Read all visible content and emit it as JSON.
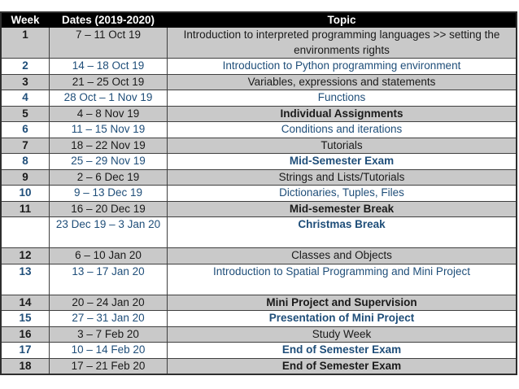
{
  "table": {
    "title": "course-schedule",
    "columns": [
      {
        "label": "Week"
      },
      {
        "label": "Dates (2019-2020)"
      },
      {
        "label": "Topic"
      }
    ],
    "rows": [
      {
        "week": "1",
        "dates": "7 – 11 Oct 19",
        "topic": "Introduction to interpreted programming languages >> setting the environments rights",
        "shade": "gray",
        "topic_bold": false,
        "lines": 2
      },
      {
        "week": "2",
        "dates": "14 – 18 Oct 19",
        "topic": "Introduction to Python programming environment",
        "shade": "white",
        "topic_bold": false,
        "lines": 1
      },
      {
        "week": "3",
        "dates": "21 – 25 Oct 19",
        "topic": "Variables, expressions and statements",
        "shade": "gray",
        "topic_bold": false,
        "lines": 1
      },
      {
        "week": "4",
        "dates": "28 Oct – 1 Nov 19",
        "topic": "Functions",
        "shade": "white",
        "topic_bold": false,
        "lines": 1
      },
      {
        "week": "5",
        "dates": "4 – 8 Nov 19",
        "topic": "Individual Assignments",
        "shade": "gray",
        "topic_bold": true,
        "lines": 1
      },
      {
        "week": "6",
        "dates": "11 – 15 Nov 19",
        "topic": "Conditions and iterations",
        "shade": "white",
        "topic_bold": false,
        "lines": 1
      },
      {
        "week": "7",
        "dates": "18 – 22 Nov 19",
        "topic": "Tutorials",
        "shade": "gray",
        "topic_bold": false,
        "lines": 1
      },
      {
        "week": "8",
        "dates": "25 – 29 Nov 19",
        "topic": "Mid-Semester Exam",
        "shade": "white",
        "topic_bold": true,
        "lines": 1
      },
      {
        "week": "9",
        "dates": "2 – 6 Dec 19",
        "topic": "Strings and Lists/Tutorials",
        "shade": "gray",
        "topic_bold": false,
        "lines": 1
      },
      {
        "week": "10",
        "dates": "9 – 13 Dec 19",
        "topic": "Dictionaries, Tuples, Files",
        "shade": "white",
        "topic_bold": false,
        "lines": 1
      },
      {
        "week": "11",
        "dates": "16 – 20 Dec 19",
        "topic": "Mid-semester Break",
        "shade": "gray",
        "topic_bold": true,
        "lines": 1
      },
      {
        "week": "",
        "dates": "23 Dec 19 – 3 Jan 20",
        "topic": "Christmas Break",
        "shade": "white",
        "topic_bold": true,
        "lines": 2
      },
      {
        "week": "12",
        "dates": "6 – 10 Jan 20",
        "topic": "Classes and Objects",
        "shade": "gray",
        "topic_bold": false,
        "lines": 1
      },
      {
        "week": "13",
        "dates": "13 – 17 Jan 20",
        "topic": "Introduction to Spatial Programming and Mini Project",
        "shade": "white",
        "topic_bold": false,
        "lines": 2
      },
      {
        "week": "14",
        "dates": "20 – 24 Jan 20",
        "topic": "Mini Project and Supervision",
        "shade": "gray",
        "topic_bold": true,
        "lines": 1
      },
      {
        "week": "15",
        "dates": "27 – 31 Jan 20",
        "topic": "Presentation of Mini Project",
        "shade": "white",
        "topic_bold": true,
        "lines": 1
      },
      {
        "week": "16",
        "dates": "3 – 7 Feb 20",
        "topic": "Study Week",
        "shade": "gray",
        "topic_bold": false,
        "lines": 1
      },
      {
        "week": "17",
        "dates": "10 – 14 Feb 20",
        "topic": "End of Semester Exam",
        "shade": "white",
        "topic_bold": true,
        "lines": 1
      },
      {
        "week": "18",
        "dates": "17 – 21 Feb 20",
        "topic": "End of Semester Exam",
        "shade": "gray",
        "topic_bold": true,
        "lines": 1
      }
    ],
    "colors": {
      "header_bg": "#000000",
      "header_text": "#ffffff",
      "gray_row_bg": "#c9c9c9",
      "white_row_bg": "#ffffff",
      "gray_row_text": "#1a1a1a",
      "white_row_text": "#1f4e79",
      "border": "#3f3f3f"
    }
  }
}
